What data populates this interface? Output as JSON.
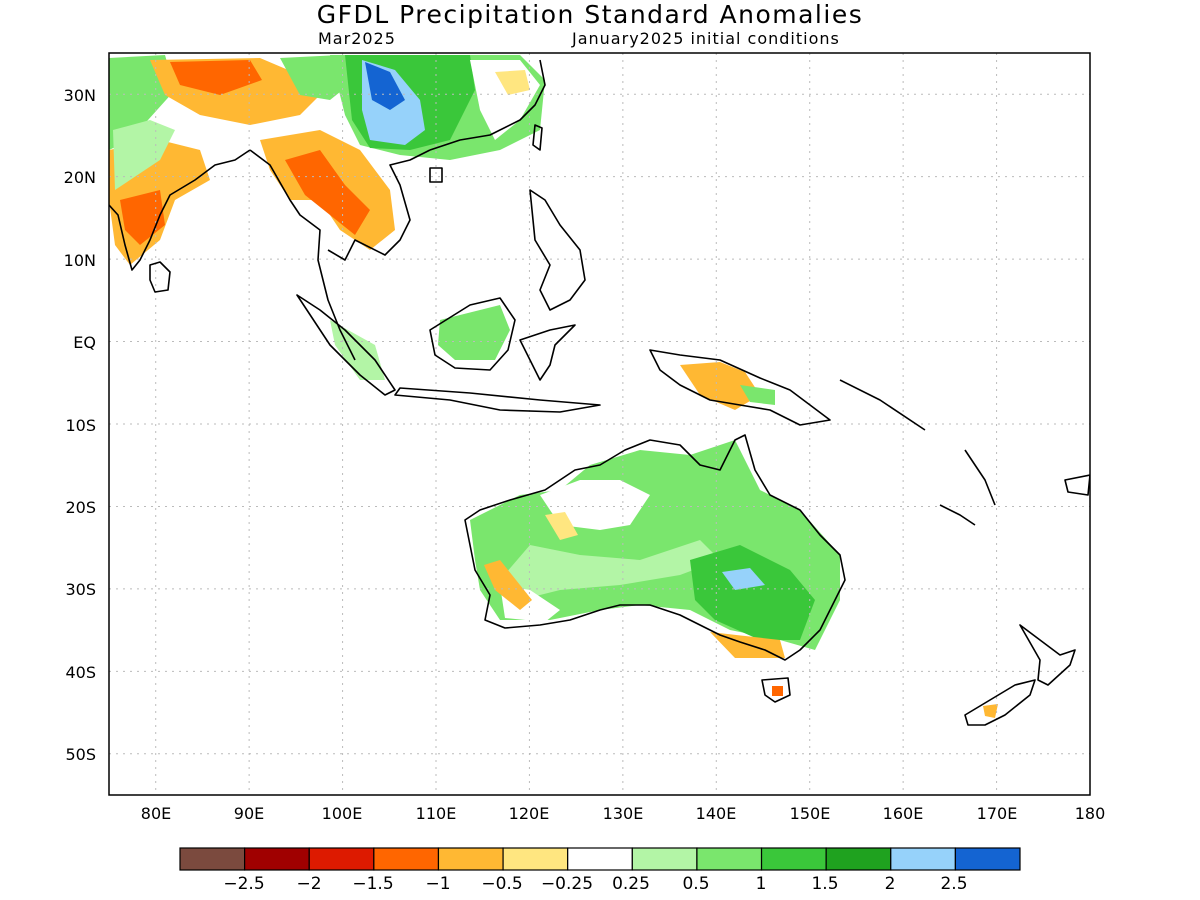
{
  "header": {
    "title": "GFDL Precipitation Standard Anomalies",
    "valid_month": "Mar2025",
    "init_conditions": "January2025 initial conditions"
  },
  "map": {
    "lon_range": [
      75,
      180
    ],
    "lat_range": [
      -55,
      35
    ],
    "lat_ticks": [
      {
        "value": 30,
        "label": "30N"
      },
      {
        "value": 20,
        "label": "20N"
      },
      {
        "value": 10,
        "label": "10N"
      },
      {
        "value": 0,
        "label": "EQ"
      },
      {
        "value": -10,
        "label": "10S"
      },
      {
        "value": -20,
        "label": "20S"
      },
      {
        "value": -30,
        "label": "30S"
      },
      {
        "value": -40,
        "label": "40S"
      },
      {
        "value": -50,
        "label": "50S"
      }
    ],
    "lon_ticks": [
      {
        "value": 80,
        "label": "80E"
      },
      {
        "value": 90,
        "label": "90E"
      },
      {
        "value": 100,
        "label": "100E"
      },
      {
        "value": 110,
        "label": "110E"
      },
      {
        "value": 120,
        "label": "120E"
      },
      {
        "value": 130,
        "label": "130E"
      },
      {
        "value": 140,
        "label": "140E"
      },
      {
        "value": 150,
        "label": "150E"
      },
      {
        "value": 160,
        "label": "160E"
      },
      {
        "value": 170,
        "label": "170E"
      },
      {
        "value": 180,
        "label": "180"
      }
    ]
  },
  "colorbar": {
    "colors": [
      "#7b4a3e",
      "#a00000",
      "#dd1a00",
      "#ff6600",
      "#ffb833",
      "#ffe680",
      "#ffffff",
      "#b3f5a6",
      "#7ae66d",
      "#3ac73a",
      "#1fa21f",
      "#96d2fa",
      "#1464d2"
    ],
    "labels": [
      "−2.5",
      "−2",
      "−1.5",
      "−1",
      "−0.5",
      "−0.25",
      "0.25",
      "0.5",
      "1",
      "1.5",
      "2",
      "2.5"
    ]
  }
}
